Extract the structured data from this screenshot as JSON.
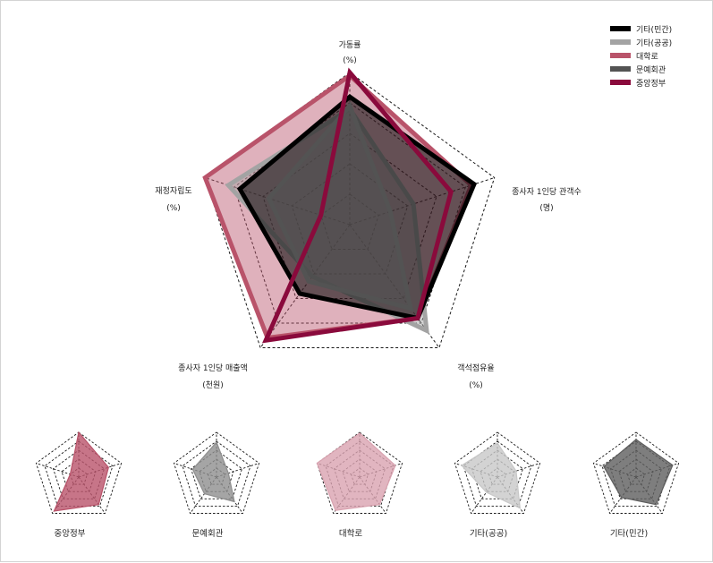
{
  "chart_data": [
    {
      "type": "radar",
      "axes": [
        {
          "label": "가동률",
          "unit": "(%)"
        },
        {
          "label": "종사자 1인당 관객수",
          "unit": "(명)"
        },
        {
          "label": "객석점유율",
          "unit": "(%)"
        },
        {
          "label": "종사자 1인당 매출액",
          "unit": "(천원)"
        },
        {
          "label": "재정자립도",
          "unit": "(%)"
        }
      ],
      "rlim": [
        0,
        5
      ],
      "grid_levels": 5,
      "legend_position": "top-right",
      "series": [
        {
          "name": "기타(민간)",
          "values": [
            4.2,
            4.3,
            3.8,
            2.8,
            3.8
          ],
          "color": "#000000",
          "fill_opacity": 0.55
        },
        {
          "name": "기타(공공)",
          "values": [
            3.8,
            2.2,
            4.3,
            2.1,
            4.2
          ],
          "color": "#a3a3a3",
          "fill_opacity": 0.45
        },
        {
          "name": "대학로",
          "values": [
            4.9,
            4.2,
            3.8,
            4.6,
            5.0
          ],
          "color": "#b9536a",
          "fill_opacity": 0.45
        },
        {
          "name": "문예회관",
          "values": [
            3.9,
            1.4,
            3.4,
            2.3,
            2.8
          ],
          "color": "#535353",
          "fill_opacity": 0.55
        },
        {
          "name": "중앙정부",
          "values": [
            5.0,
            3.5,
            3.8,
            4.7,
            1.0
          ],
          "color": "#8a0a3c",
          "fill_opacity": 0.0
        }
      ]
    },
    {
      "type": "radar",
      "series": [
        {
          "name": "중앙정부",
          "values": [
            5.0,
            3.5,
            3.8,
            4.7,
            1.0
          ],
          "color": "#b9536a",
          "fill_opacity": 0.8
        }
      ]
    },
    {
      "type": "radar",
      "series": [
        {
          "name": "문예회관",
          "values": [
            3.9,
            1.4,
            3.4,
            2.3,
            2.8
          ],
          "color": "#8e8e8e",
          "fill_opacity": 0.8
        }
      ]
    },
    {
      "type": "radar",
      "series": [
        {
          "name": "대학로",
          "values": [
            4.9,
            4.2,
            3.8,
            4.6,
            5.0
          ],
          "color": "#d9a3b0",
          "fill_opacity": 0.8
        }
      ]
    },
    {
      "type": "radar",
      "series": [
        {
          "name": "기타(공공)",
          "values": [
            3.8,
            2.2,
            4.3,
            2.1,
            4.2
          ],
          "color": "#c8c8c8",
          "fill_opacity": 0.8
        }
      ]
    },
    {
      "type": "radar",
      "series": [
        {
          "name": "기타(민간)",
          "values": [
            4.2,
            4.3,
            3.8,
            2.8,
            3.8
          ],
          "color": "#5e5e5e",
          "fill_opacity": 0.8
        }
      ]
    }
  ]
}
